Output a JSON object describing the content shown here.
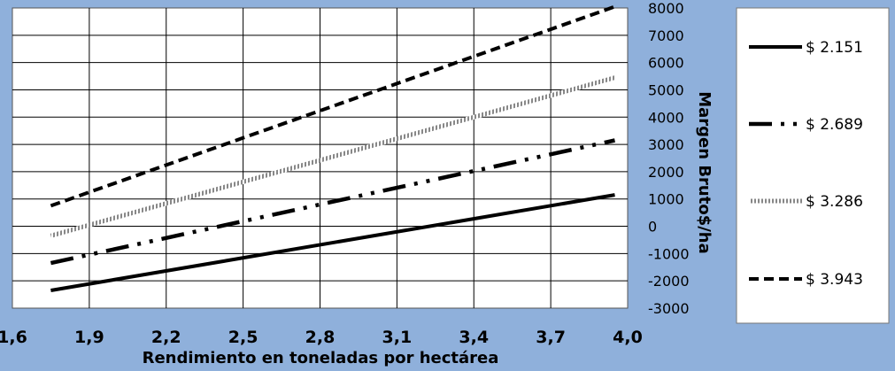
{
  "chart_data": {
    "type": "line",
    "title": "",
    "xlabel": "Rendimiento en toneladas por hectárea",
    "ylabel": "Margen Bruto$/ha",
    "xlim": [
      1.6,
      4.0
    ],
    "ylim": [
      -3000,
      8000
    ],
    "x_tick_labels": [
      "1,6",
      "1,9",
      "2,2",
      "2,5",
      "2,8",
      "3,1",
      "3,4",
      "3,7",
      "4,0"
    ],
    "y_tick_labels": [
      "8000",
      "7000",
      "6000",
      "5000",
      "4000",
      "3000",
      "2000",
      "1000",
      "0",
      "-1000",
      "-2000",
      "-3000"
    ],
    "negative_tick_color": "#e8141b",
    "grid": true,
    "legend_position": "right",
    "series": [
      {
        "name": "$ 2.151",
        "style": "solid",
        "x": [
          1.75,
          3.95
        ],
        "y": [
          -2350,
          1150
        ]
      },
      {
        "name": "$ 2.689",
        "style": "dash-dot-dot",
        "x": [
          1.75,
          3.95
        ],
        "y": [
          -1350,
          3150
        ]
      },
      {
        "name": "$ 3.286",
        "style": "hatched",
        "x": [
          1.75,
          3.95
        ],
        "y": [
          -350,
          5450
        ]
      },
      {
        "name": "$ 3.943",
        "style": "dashed",
        "x": [
          1.75,
          3.95
        ],
        "y": [
          750,
          8050
        ]
      }
    ]
  }
}
